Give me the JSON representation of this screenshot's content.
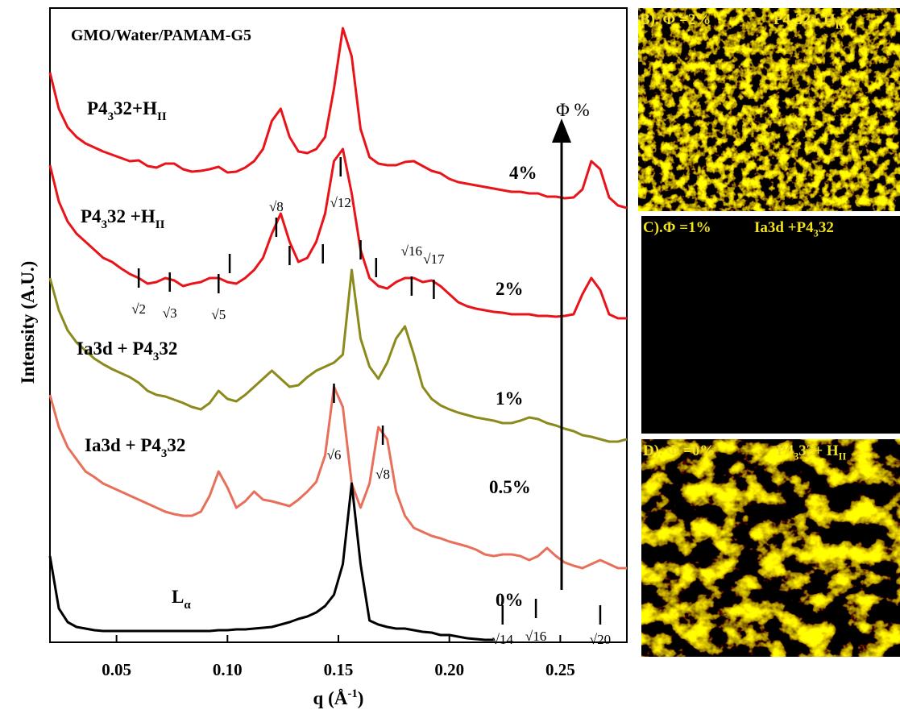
{
  "chart_data": {
    "type": "line",
    "title": "GMO/Water/PAMAM-G5",
    "x_label": [
      "q (Å",
      "-1",
      ")"
    ],
    "y_label": "Intensity (A.U.)",
    "xlim": [
      0.02,
      0.28
    ],
    "ylim": [
      0,
      787
    ],
    "xticks": [
      0.05,
      {
        "value": 0.1,
        "label": "0.10"
      },
      0.15,
      {
        "value": 0.2,
        "label": "0.20"
      },
      0.25
    ],
    "x": [
      0.02,
      0.024,
      0.028,
      0.032,
      0.036,
      0.04,
      0.044,
      0.048,
      0.052,
      0.056,
      0.06,
      0.064,
      0.068,
      0.072,
      0.076,
      0.08,
      0.084,
      0.088,
      0.092,
      0.096,
      0.1,
      0.104,
      0.108,
      0.112,
      0.116,
      0.12,
      0.124,
      0.128,
      0.132,
      0.136,
      0.14,
      0.144,
      0.148,
      0.152,
      0.156,
      0.16,
      0.164,
      0.168,
      0.172,
      0.176,
      0.18,
      0.184,
      0.188,
      0.192,
      0.196,
      0.2,
      0.204,
      0.208,
      0.212,
      0.216,
      0.22,
      0.224,
      0.228,
      0.232,
      0.236,
      0.24,
      0.244,
      0.248,
      0.252,
      0.256,
      0.26,
      0.264,
      0.268,
      0.272,
      0.276,
      0.28
    ],
    "series": [
      {
        "name": "4%",
        "color": "#e8141a",
        "values": [
          707,
          662,
          639,
          627,
          619,
          614,
          609,
          605,
          601,
          597,
          598,
          591,
          589,
          594,
          594,
          587,
          584,
          585,
          587,
          590,
          583,
          584,
          589,
          597,
          612,
          647,
          662,
          627,
          609,
          607,
          612,
          627,
          687,
          762,
          727,
          637,
          602,
          594,
          592,
          592,
          596,
          597,
          591,
          585,
          582,
          575,
          571,
          569,
          567,
          565,
          563,
          561,
          559,
          559,
          557,
          557,
          553,
          553,
          551,
          552,
          562,
          597,
          587,
          552,
          542,
          539
        ]
      },
      {
        "name": "2%",
        "color": "#e8141a",
        "values": [
          592,
          547,
          522,
          507,
          497,
          487,
          477,
          472,
          464,
          457,
          452,
          445,
          447,
          452,
          449,
          442,
          445,
          447,
          452,
          452,
          447,
          445,
          452,
          462,
          477,
          507,
          532,
          497,
          472,
          477,
          497,
          532,
          597,
          612,
          557,
          487,
          452,
          442,
          439,
          447,
          452,
          452,
          447,
          449,
          442,
          432,
          422,
          417,
          414,
          412,
          410,
          409,
          407,
          407,
          407,
          405,
          405,
          404,
          405,
          407,
          432,
          452,
          437,
          407,
          402,
          402
        ]
      },
      {
        "name": "1%",
        "color": "#8b8a1c",
        "values": [
          452,
          412,
          387,
          372,
          362,
          352,
          345,
          339,
          334,
          329,
          322,
          312,
          307,
          305,
          301,
          297,
          292,
          289,
          297,
          312,
          302,
          299,
          307,
          317,
          327,
          337,
          327,
          317,
          319,
          329,
          337,
          342,
          347,
          357,
          462,
          377,
          342,
          327,
          347,
          377,
          392,
          357,
          317,
          302,
          294,
          289,
          285,
          282,
          279,
          277,
          275,
          272,
          272,
          275,
          279,
          277,
          272,
          269,
          265,
          262,
          257,
          255,
          252,
          249,
          249,
          252
        ]
      },
      {
        "name": "0.5%",
        "color": "#e8705a",
        "values": [
          307,
          267,
          242,
          227,
          212,
          205,
          197,
          192,
          187,
          182,
          177,
          172,
          167,
          162,
          159,
          157,
          157,
          162,
          182,
          212,
          192,
          167,
          175,
          187,
          177,
          175,
          172,
          169,
          177,
          187,
          199,
          232,
          317,
          292,
          197,
          167,
          197,
          267,
          252,
          187,
          157,
          142,
          137,
          132,
          129,
          125,
          122,
          119,
          115,
          109,
          107,
          109,
          109,
          107,
          102,
          107,
          117,
          107,
          99,
          95,
          92,
          97,
          102,
          97,
          92,
          92
        ]
      },
      {
        "name": "0%",
        "color": "#000000",
        "values": [
          107,
          42,
          25,
          19,
          17,
          15,
          14,
          14,
          14,
          14,
          14,
          14,
          14,
          14,
          14,
          14,
          14,
          14,
          14,
          15,
          15,
          16,
          16,
          17,
          18,
          19,
          22,
          25,
          29,
          32,
          37,
          45,
          59,
          97,
          197,
          97,
          27,
          22,
          19,
          17,
          17,
          15,
          13,
          12,
          9,
          9,
          7,
          5,
          4,
          3,
          3,
          null,
          null,
          null,
          null,
          null,
          null,
          null,
          null,
          null,
          null,
          null,
          null,
          null,
          null,
          null
        ]
      }
    ],
    "curve_labels": [
      [
        "P4",
        "3",
        "32+H",
        "II"
      ],
      [
        "P4",
        "3",
        "32 +H",
        "II"
      ],
      [
        "Ia3d + P4",
        "3",
        "32"
      ],
      [
        "Ia3d + P4",
        "3",
        "32"
      ],
      [
        "L",
        "α"
      ]
    ],
    "peak_markers": [
      {
        "label": "√2",
        "x": 0.06,
        "y": 452
      },
      {
        "label": "√3",
        "x": 0.074,
        "y": 447
      },
      {
        "label": "√5",
        "x": 0.096,
        "y": 445
      },
      {
        "x": 0.101,
        "y": 470
      },
      {
        "label": "√8",
        "x": 0.122,
        "y": 515
      },
      {
        "x": 0.128,
        "y": 480
      },
      {
        "x": 0.143,
        "y": 482
      },
      {
        "label": "√12",
        "x": 0.151,
        "y": 590
      },
      {
        "x": 0.16,
        "y": 487
      },
      {
        "x": 0.167,
        "y": 465
      },
      {
        "label": "√16",
        "x": 0.183,
        "y": 442
      },
      {
        "label": "√17",
        "x": 0.193,
        "y": 438
      },
      {
        "label": "√6",
        "x": 0.148,
        "y": 309
      },
      {
        "label": "√8",
        "x": 0.17,
        "y": 257
      },
      {
        "label": "√14",
        "x": 0.224,
        "y": 34
      },
      {
        "label": "√16",
        "x": 0.239,
        "y": 42
      },
      {
        "label": "√20",
        "x": 0.268,
        "y": 34
      }
    ],
    "arrow_label": "Φ %"
  },
  "panels": [
    {
      "label": "B).  Φ =2%",
      "phase": [
        "P4",
        "3",
        "32+ H",
        "II"
      ]
    },
    {
      "label": "C).Φ =1%",
      "phase": [
        "Ia3d +P4",
        "3",
        "32"
      ]
    },
    {
      "label": "D).   Φ =0%",
      "phase": [
        "P4",
        "3",
        "32+ H",
        "II"
      ]
    }
  ]
}
